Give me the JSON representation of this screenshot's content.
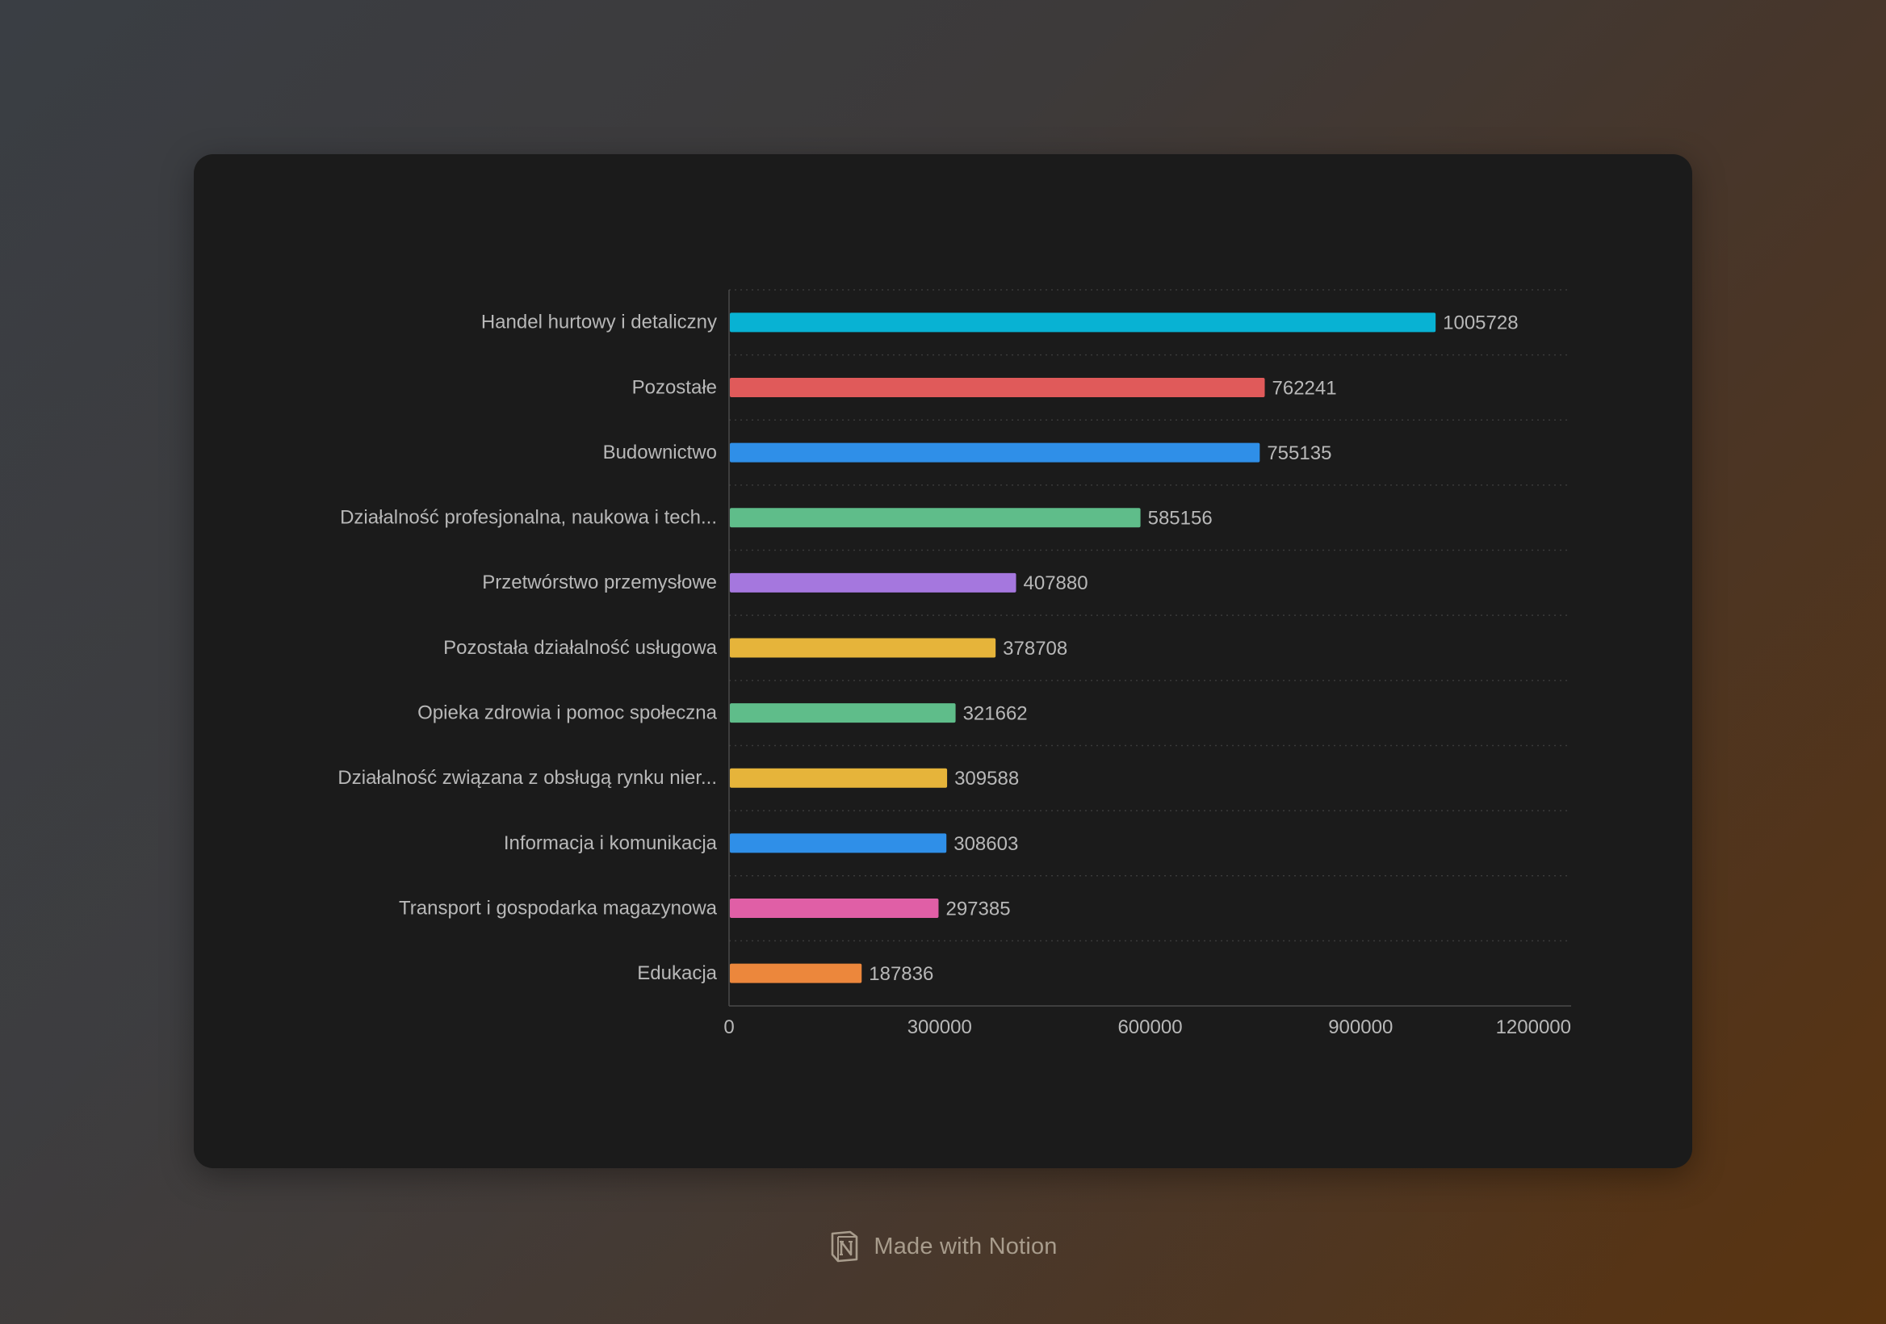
{
  "footer": {
    "text": "Made with Notion",
    "logo_icon": "notion-logo-icon"
  },
  "chart_data": {
    "type": "bar",
    "orientation": "horizontal",
    "categories": [
      "Handel hurtowy i detaliczny",
      "Pozostałe",
      "Budownictwo",
      "Działalność profesjonalna, naukowa i tech...",
      "Przetwórstwo przemysłowe",
      "Pozostała działalność usługowa",
      "Opieka zdrowia i pomoc społeczna",
      "Działalność związana z obsługą rynku nier...",
      "Informacja i komunikacja",
      "Transport i gospodarka magazynowa",
      "Edukacja"
    ],
    "values": [
      1005728,
      762241,
      755135,
      585156,
      407880,
      378708,
      321662,
      309588,
      308603,
      297385,
      187836
    ],
    "colors": [
      "#08b2d3",
      "#e05a5a",
      "#2f8fe8",
      "#5fbd8a",
      "#a577de",
      "#e6b43a",
      "#5fbd8a",
      "#e6b43a",
      "#2f8fe8",
      "#e05fa6",
      "#ec873c"
    ],
    "xlim": [
      0,
      1200000
    ],
    "xticks": [
      "0",
      "300000",
      "600000",
      "900000",
      "1200000"
    ],
    "title": "",
    "xlabel": "",
    "ylabel": "",
    "grid": true,
    "data_labels": true
  }
}
